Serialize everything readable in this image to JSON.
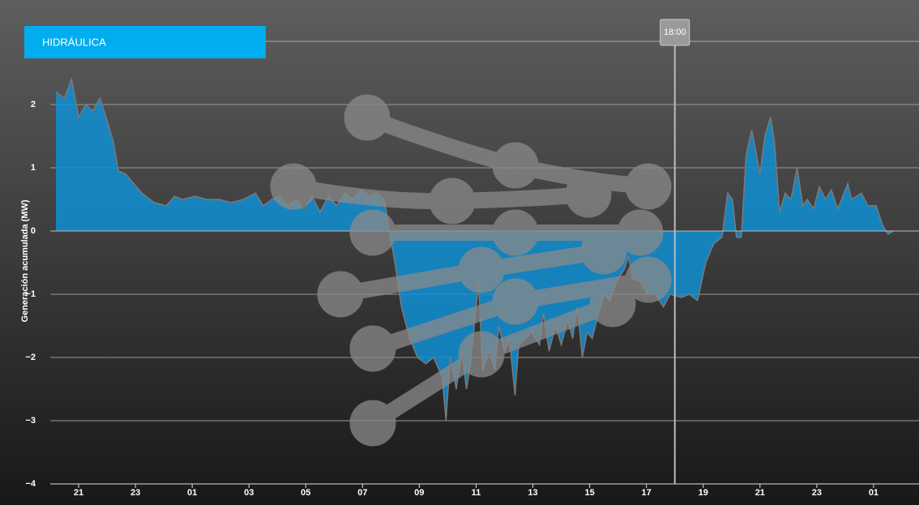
{
  "chart_data": {
    "type": "area",
    "y_label": "Generación acumulada (MW)",
    "x": [
      20.2,
      20.5,
      20.75,
      21.0,
      21.25,
      21.5,
      21.75,
      22.0,
      22.23,
      22.4,
      22.66,
      22.94,
      23.23,
      23.66,
      24.09,
      24.37,
      24.66,
      25.09,
      25.5,
      25.94,
      26.37,
      26.8,
      27.23,
      27.5,
      27.8,
      28.09,
      28.37,
      28.66,
      28.94,
      29.23,
      29.5,
      29.8,
      30.09,
      30.37,
      30.66,
      30.94,
      31.23,
      31.5,
      31.77,
      31.94,
      32.14,
      32.37,
      32.66,
      32.94,
      33.23,
      33.5,
      33.8,
      33.94,
      34.09,
      34.3,
      34.5,
      34.66,
      34.8,
      35.09,
      35.23,
      35.46,
      35.66,
      35.8,
      36.0,
      36.17,
      36.37,
      36.5,
      36.74,
      36.94,
      37.23,
      37.37,
      37.57,
      37.8,
      38.0,
      38.23,
      38.4,
      38.57,
      38.74,
      38.91,
      39.09,
      39.31,
      39.51,
      39.71,
      39.94,
      40.23,
      40.37,
      40.51,
      40.8,
      41.03,
      41.31,
      41.6,
      41.83,
      42.23,
      42.51,
      42.8,
      43.09,
      43.37,
      43.66,
      43.86,
      44.03,
      44.17,
      44.34,
      44.51,
      44.71,
      45.0,
      45.17,
      45.37,
      45.51,
      45.69,
      45.89,
      46.09,
      46.31,
      46.51,
      46.66,
      46.89,
      47.09,
      47.31,
      47.51,
      47.74,
      48.09,
      48.23,
      48.57,
      48.8,
      49.09,
      49.31,
      49.51,
      49.71
    ],
    "series": [
      {
        "name": "HIDRÁULICA",
        "color": "#0f8fd3",
        "values": [
          2.2,
          2.1,
          2.4,
          1.8,
          2.0,
          1.9,
          2.1,
          1.75,
          1.4,
          0.95,
          0.9,
          0.75,
          0.6,
          0.45,
          0.4,
          0.55,
          0.5,
          0.55,
          0.5,
          0.5,
          0.45,
          0.5,
          0.6,
          0.4,
          0.5,
          0.55,
          0.4,
          0.5,
          0.35,
          0.55,
          0.3,
          0.55,
          0.4,
          0.6,
          0.5,
          0.65,
          0.55,
          0.6,
          0.5,
          0,
          -0.5,
          -1.2,
          -1.7,
          -2.0,
          -2.1,
          -2.0,
          -2.3,
          -3.0,
          -2.0,
          -2.5,
          -1.9,
          -2.5,
          -2.1,
          -0.8,
          -2.2,
          -1.9,
          -2.2,
          -1.5,
          -1.9,
          -1.7,
          -2.6,
          -1.8,
          -1.7,
          -1.6,
          -1.8,
          -1.3,
          -1.9,
          -1.5,
          -1.8,
          -1.4,
          -1.7,
          -1.2,
          -2.0,
          -1.6,
          -1.7,
          -1.3,
          -1.0,
          -1.1,
          -0.8,
          -0.6,
          -0.4,
          -0.75,
          -0.8,
          -1.0,
          -1.0,
          -1.2,
          -1.0,
          -1.05,
          -1.0,
          -1.1,
          -0.5,
          -0.2,
          -0.1,
          0.6,
          0.5,
          -0.1,
          -0.1,
          1.2,
          1.6,
          0.9,
          1.5,
          1.8,
          1.4,
          0.3,
          0.6,
          0.5,
          1.0,
          0.4,
          0.5,
          0.35,
          0.7,
          0.5,
          0.65,
          0.35,
          0.75,
          0.5,
          0.6,
          0.4,
          0.4,
          0.1,
          -0.05,
          0
        ]
      }
    ],
    "xlim": [
      20,
      50.6
    ],
    "ylim": [
      -4,
      3
    ],
    "xticks": [
      {
        "value": 21,
        "label": "21"
      },
      {
        "value": 23,
        "label": "23"
      },
      {
        "value": 25,
        "label": "01"
      },
      {
        "value": 27,
        "label": "03"
      },
      {
        "value": 29,
        "label": "05"
      },
      {
        "value": 31,
        "label": "07"
      },
      {
        "value": 33,
        "label": "09"
      },
      {
        "value": 35,
        "label": "11"
      },
      {
        "value": 37,
        "label": "13"
      },
      {
        "value": 39,
        "label": "15"
      },
      {
        "value": 41,
        "label": "17"
      },
      {
        "value": 43,
        "label": "19"
      },
      {
        "value": 45,
        "label": "21"
      },
      {
        "value": 47,
        "label": "23"
      },
      {
        "value": 49,
        "label": "01"
      }
    ],
    "yticks": [
      {
        "value": -4,
        "label": "−4"
      },
      {
        "value": -3,
        "label": "−3"
      },
      {
        "value": -2,
        "label": "−2"
      },
      {
        "value": -1,
        "label": "−1"
      },
      0,
      1,
      2
    ],
    "marker": {
      "value": 42,
      "label": "18:00"
    },
    "grid": true
  }
}
